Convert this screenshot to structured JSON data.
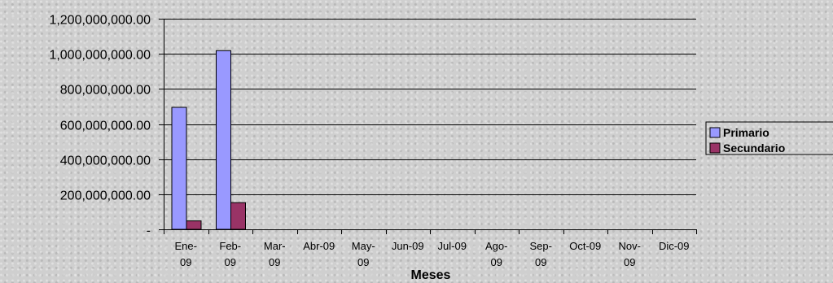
{
  "chart_data": {
    "type": "bar",
    "title": "",
    "xlabel": "Meses",
    "ylabel": "",
    "ylim": [
      0,
      1200000000
    ],
    "y_ticks": [
      0,
      200000000,
      400000000,
      600000000,
      800000000,
      1000000000,
      1200000000
    ],
    "y_tick_labels": [
      "-",
      "200,000,000.00",
      "400,000,000.00",
      "600,000,000.00",
      "800,000,000.00",
      "1,000,000,000.00",
      "1,200,000,000.00"
    ],
    "categories": [
      "Ene-09",
      "Feb-09",
      "Mar-09",
      "Abr-09",
      "May-09",
      "Jun-09",
      "Jul-09",
      "Ago-09",
      "Sep-09",
      "Oct-09",
      "Nov-09",
      "Dic-09"
    ],
    "category_label_lines": [
      [
        "Ene-",
        "09"
      ],
      [
        "Feb-",
        "09"
      ],
      [
        "Mar-",
        "09"
      ],
      [
        "Abr-09"
      ],
      [
        "May-",
        "09"
      ],
      [
        "Jun-09"
      ],
      [
        "Jul-09"
      ],
      [
        "Ago-",
        "09"
      ],
      [
        "Sep-",
        "09"
      ],
      [
        "Oct-09"
      ],
      [
        "Nov-",
        "09"
      ],
      [
        "Dic-09"
      ]
    ],
    "series": [
      {
        "name": "Primario",
        "color": "#9999ff",
        "values": [
          695000000,
          1018000000,
          0,
          0,
          0,
          0,
          0,
          0,
          0,
          0,
          0,
          0
        ]
      },
      {
        "name": "Secundario",
        "color": "#993366",
        "values": [
          48000000,
          152000000,
          0,
          0,
          0,
          0,
          0,
          0,
          0,
          0,
          0,
          0
        ]
      }
    ],
    "grid": true,
    "legend_position": "right"
  }
}
